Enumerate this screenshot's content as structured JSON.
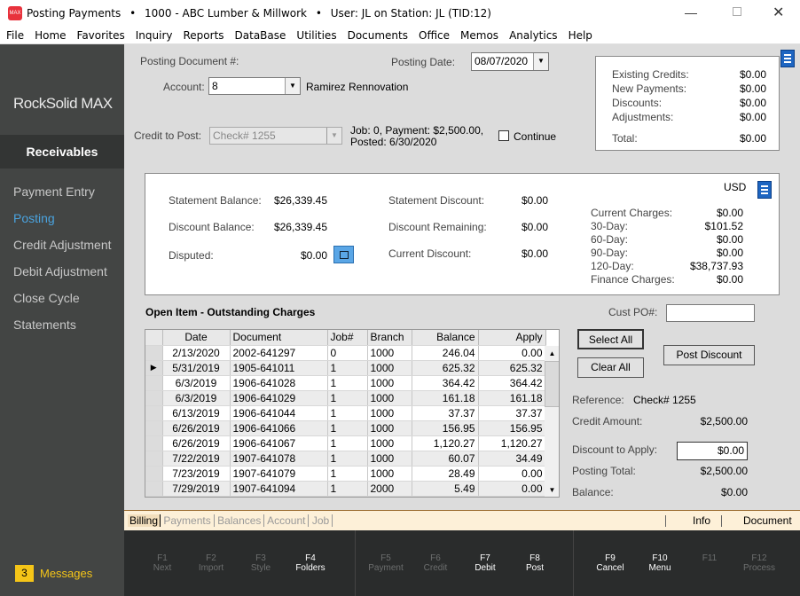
{
  "window": {
    "title": "Posting Payments",
    "company": "1000 - ABC Lumber & Millwork",
    "user": "User: JL on Station: JL (TID:12)",
    "sep": "•",
    "app_icon_text": "MAX"
  },
  "menu": [
    "File",
    "Home",
    "Favorites",
    "Inquiry",
    "Reports",
    "DataBase",
    "Utilities",
    "Documents",
    "Office",
    "Memos",
    "Analytics",
    "Help"
  ],
  "sidebar": {
    "logo": "RockSolid MAX",
    "section": "Receivables",
    "items": [
      "Payment Entry",
      "Posting",
      "Credit Adjustment",
      "Debit Adjustment",
      "Close Cycle",
      "Statements"
    ],
    "active": 1,
    "messages_count": "3",
    "messages_label": "Messages"
  },
  "form": {
    "posting_doc_label": "Posting Document #:",
    "posting_date_label": "Posting Date:",
    "posting_date": "08/07/2020",
    "account_label": "Account:",
    "account": "8",
    "account_name": "Ramirez Rennovation",
    "credit_label": "Credit to Post:",
    "credit_value": "Check# 1255",
    "credit_info1": "Job: 0, Payment: $2,500.00,",
    "credit_info2": "Posted: 6/30/2020",
    "continue_label": "Continue",
    "continue_checked": false
  },
  "summary": {
    "rows": [
      {
        "label": "Existing Credits:",
        "value": "$0.00"
      },
      {
        "label": "New Payments:",
        "value": "$0.00"
      },
      {
        "label": "Discounts:",
        "value": "$0.00"
      },
      {
        "label": "Adjustments:",
        "value": "$0.00"
      }
    ],
    "total_label": "Total:",
    "total": "$0.00"
  },
  "balances": {
    "statement_balance_label": "Statement Balance:",
    "statement_balance": "$26,339.45",
    "discount_balance_label": "Discount Balance:",
    "discount_balance": "$26,339.45",
    "disputed_label": "Disputed:",
    "disputed": "$0.00",
    "statement_discount_label": "Statement Discount:",
    "statement_discount": "$0.00",
    "discount_remaining_label": "Discount Remaining:",
    "discount_remaining": "$0.00",
    "current_discount_label": "Current Discount:",
    "current_discount": "$0.00",
    "currency": "USD",
    "aging": [
      {
        "label": "Current Charges:",
        "value": "$0.00"
      },
      {
        "label": "30-Day:",
        "value": "$101.52"
      },
      {
        "label": "60-Day:",
        "value": "$0.00"
      },
      {
        "label": "90-Day:",
        "value": "$0.00"
      },
      {
        "label": "120-Day:",
        "value": "$38,737.93"
      },
      {
        "label": "Finance Charges:",
        "value": "$0.00"
      }
    ]
  },
  "grid": {
    "title": "Open Item - Outstanding Charges",
    "columns": [
      "Date",
      "Document",
      "Job#",
      "Branch",
      "Balance",
      "Apply"
    ],
    "current_row": 1,
    "rows": [
      [
        "2/13/2020",
        "2002-641297",
        "0",
        "1000",
        "246.04",
        "0.00"
      ],
      [
        "5/31/2019",
        "1905-641011",
        "1",
        "1000",
        "625.32",
        "625.32"
      ],
      [
        "6/3/2019",
        "1906-641028",
        "1",
        "1000",
        "364.42",
        "364.42"
      ],
      [
        "6/3/2019",
        "1906-641029",
        "1",
        "1000",
        "161.18",
        "161.18"
      ],
      [
        "6/13/2019",
        "1906-641044",
        "1",
        "1000",
        "37.37",
        "37.37"
      ],
      [
        "6/26/2019",
        "1906-641066",
        "1",
        "1000",
        "156.95",
        "156.95"
      ],
      [
        "6/26/2019",
        "1906-641067",
        "1",
        "1000",
        "1,120.27",
        "1,120.27"
      ],
      [
        "7/22/2019",
        "1907-641078",
        "1",
        "1000",
        "60.07",
        "34.49"
      ],
      [
        "7/23/2019",
        "1907-641079",
        "1",
        "1000",
        "28.49",
        "0.00"
      ],
      [
        "7/29/2019",
        "1907-641094",
        "1",
        "2000",
        "5.49",
        "0.00"
      ]
    ]
  },
  "right": {
    "cust_po_label": "Cust PO#:",
    "cust_po": "",
    "select_all": "Select All",
    "clear_all": "Clear All",
    "post_discount": "Post Discount",
    "reference_label": "Reference:",
    "reference": "Check# 1255",
    "credit_amount_label": "Credit Amount:",
    "credit_amount": "$2,500.00",
    "discount_apply_label": "Discount to Apply:",
    "discount_apply": "$0.00",
    "posting_total_label": "Posting Total:",
    "posting_total": "$2,500.00",
    "balance_label": "Balance:",
    "balance": "$0.00"
  },
  "tabs": {
    "items": [
      "Billing",
      "Payments",
      "Balances",
      "Account",
      "Job"
    ],
    "active": 0,
    "right": [
      "Info",
      "Document"
    ]
  },
  "fkeys": [
    {
      "key": "F1",
      "label": "Next",
      "enabled": false
    },
    {
      "key": "F2",
      "label": "Import",
      "enabled": false
    },
    {
      "key": "F3",
      "label": "Style",
      "enabled": false
    },
    {
      "key": "F4",
      "label": "Folders",
      "enabled": true
    },
    {
      "key": "F5",
      "label": "Payment",
      "enabled": false
    },
    {
      "key": "F6",
      "label": "Credit",
      "enabled": false
    },
    {
      "key": "F7",
      "label": "Debit",
      "enabled": true
    },
    {
      "key": "F8",
      "label": "Post",
      "enabled": true
    },
    {
      "key": "F9",
      "label": "Cancel",
      "enabled": true
    },
    {
      "key": "F10",
      "label": "Menu",
      "enabled": true
    },
    {
      "key": "F11",
      "label": "",
      "enabled": false
    },
    {
      "key": "F12",
      "label": "Process",
      "enabled": false
    }
  ],
  "colors": {
    "accent": "#4aa3df",
    "sidebar": "#434544",
    "fkey_bar": "#2a2c2c",
    "tab_bar": "#fdf0d8",
    "icon_blue": "#1d65c1",
    "badge": "#f5c518"
  }
}
